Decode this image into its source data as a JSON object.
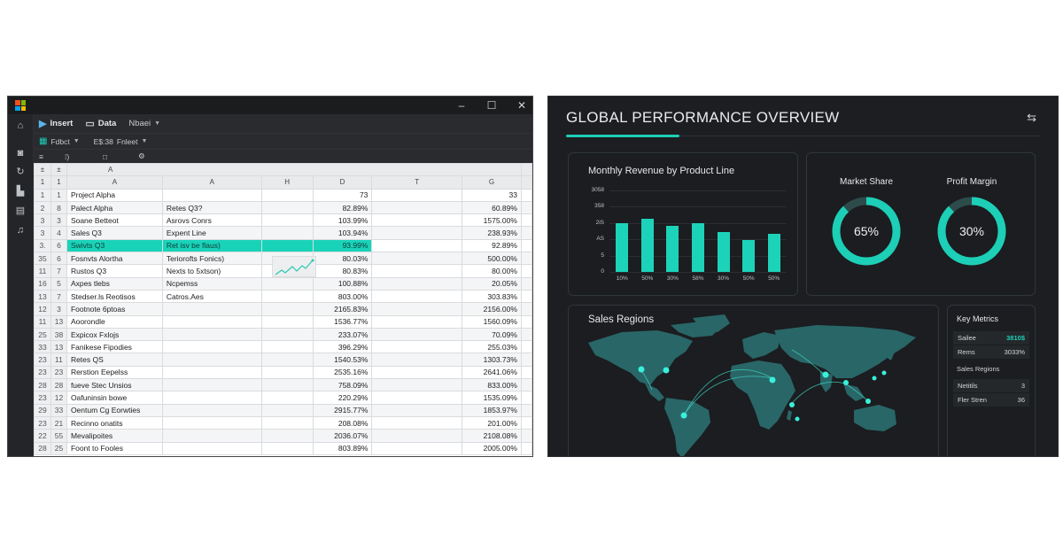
{
  "spreadsheet": {
    "window_controls": {
      "minimize": "–",
      "maximize": "☐",
      "close": "✕"
    },
    "logo_colors": [
      "#f25022",
      "#7fba00",
      "#00a4ef",
      "#ffb900"
    ],
    "left_rail_icons": [
      "home-icon",
      "camera-icon",
      "refresh-icon",
      "folder-icon",
      "grid-icon",
      "share-icon"
    ],
    "ribbon": {
      "row1": {
        "insert_label": "Insert",
        "data_label": "Data",
        "dropdown_label": "Nbaei"
      },
      "row2": {
        "item1_label": "Fdbct",
        "item2_prefix": "E$:38",
        "item2_label": "Fnleet"
      },
      "row3": {
        "icons": [
          "align-icon",
          "format-icon",
          "box-icon",
          "settings-icon"
        ]
      }
    },
    "column_header_top": {
      "c1": "±",
      "c2": "±",
      "c3": "A"
    },
    "columns": [
      "1",
      "1",
      "A",
      "A",
      "H",
      "D",
      "T",
      "G"
    ],
    "rows": [
      {
        "r1": "1",
        "r2": "1",
        "a": "Project Alpha",
        "b": "",
        "d": "73",
        "g": "33"
      },
      {
        "r1": "2",
        "r2": "8",
        "a": "Palect Alpha",
        "b": "Retes Q3?",
        "d": "82.89%",
        "g": "60.89%"
      },
      {
        "r1": "3",
        "r2": "3",
        "a": "Soane Betteot",
        "b": "Asrovs Conrs",
        "d": "103.99%",
        "g": "1575.00%"
      },
      {
        "r1": "3",
        "r2": "4",
        "a": "Sales Q3",
        "b": "Expent Line",
        "d": "103.94%",
        "g": "238.93%"
      },
      {
        "r1": "3.",
        "r2": "6",
        "a": "Swivts Q3",
        "b": "Ret isv be flaus)",
        "d": "93.99%",
        "g": "92.89%",
        "selected": true
      },
      {
        "r1": "35",
        "r2": "6",
        "a": "Fosnvts Alortha",
        "b": "Teriorofts Fonics)",
        "d": "80.03%",
        "g": "500.00%"
      },
      {
        "r1": "11",
        "r2": "7",
        "a": "Rustos Q3",
        "b": "Nexts to 5xtson)",
        "d": "80.83%",
        "g": "80.00%"
      },
      {
        "r1": "16",
        "r2": "5",
        "a": "Axpes tlebs",
        "b": "Ncpemss",
        "d": "100.88%",
        "g": "20.05%"
      },
      {
        "r1": "13",
        "r2": "7",
        "a": "Stedser.ls Reotisos",
        "b": "Catros.Aes",
        "d": "803.00%",
        "g": "303.83%"
      },
      {
        "r1": "12",
        "r2": "3",
        "a": "Footnote 6ptoas",
        "b": "",
        "d": "2165.83%",
        "g": "2156.00%"
      },
      {
        "r1": "11",
        "r2": "13",
        "a": "Aoorondle",
        "b": "",
        "d": "1536.77%",
        "g": "1560.09%"
      },
      {
        "r1": "25",
        "r2": "38",
        "a": "Expicox Fxlojs",
        "b": "",
        "d": "233.07%",
        "g": "70.09%"
      },
      {
        "r1": "33",
        "r2": "13",
        "a": "Fanikese Fipodies",
        "b": "",
        "d": "396.29%",
        "g": "255.03%"
      },
      {
        "r1": "23",
        "r2": "11",
        "a": "Retes QS",
        "b": "",
        "d": "1540.53%",
        "g": "1303.73%"
      },
      {
        "r1": "23",
        "r2": "23",
        "a": "Rerstion Eepelss",
        "b": "",
        "d": "2535.16%",
        "g": "2641.06%"
      },
      {
        "r1": "28",
        "r2": "28",
        "a": "fueve Stec Unsios",
        "b": "",
        "d": "758.09%",
        "g": "833.00%"
      },
      {
        "r1": "23",
        "r2": "12",
        "a": "Oafuninsin bowe",
        "b": "",
        "d": "220.29%",
        "g": "1535.09%"
      },
      {
        "r1": "29",
        "r2": "33",
        "a": "Oentum Cg Eorwties",
        "b": "",
        "d": "2915.77%",
        "g": "1853.97%"
      },
      {
        "r1": "23",
        "r2": "21",
        "a": "Recinno onatits",
        "b": "",
        "d": "208.08%",
        "g": "201.00%"
      },
      {
        "r1": "22",
        "r2": "55",
        "a": "Mevalipoites",
        "b": "",
        "d": "2036.07%",
        "g": "2108.08%"
      },
      {
        "r1": "28",
        "r2": "25",
        "a": "Foont to Fooles",
        "b": "",
        "d": "803.89%",
        "g": "2005.00%"
      }
    ],
    "accent_color": "#19d3b9"
  },
  "dashboard": {
    "title": "GLOBAL PERFORMANCE OVERVIEW",
    "header_icon": "collapse-icon",
    "accent_color": "#1ccfb6",
    "revenue_card": {
      "title": "Monthly Revenue by Product Line"
    },
    "donuts": [
      {
        "label": "Market Share",
        "value_text": "65%",
        "fill_pct": 88
      },
      {
        "label": "Profit Margin",
        "value_text": "30%",
        "fill_pct": 88
      }
    ],
    "map_card": {
      "title": "Sales Regions"
    },
    "key_metrics": {
      "title": "Key Metrics",
      "rows_top": [
        {
          "label": "Sailee",
          "value": "3810$",
          "accent": true
        },
        {
          "label": "Rems",
          "value": "3033%"
        }
      ],
      "subheading": "Sales Regions",
      "rows_bottom": [
        {
          "label": "Netitils",
          "value": "3"
        },
        {
          "label": "Fler Stren",
          "value": "36"
        }
      ]
    }
  },
  "chart_data": {
    "type": "bar",
    "title": "Monthly Revenue by Product Line",
    "categories": [
      "10%",
      "50%",
      "30%",
      "58%",
      "30%",
      "50%",
      "50%"
    ],
    "values": [
      300,
      325,
      285,
      300,
      245,
      195,
      235
    ],
    "yticks": [
      "0",
      "5",
      "AS",
      "2iS",
      "358",
      "3058"
    ],
    "ylim": [
      0,
      500
    ],
    "xlabel": "",
    "ylabel": "",
    "grid": true
  }
}
